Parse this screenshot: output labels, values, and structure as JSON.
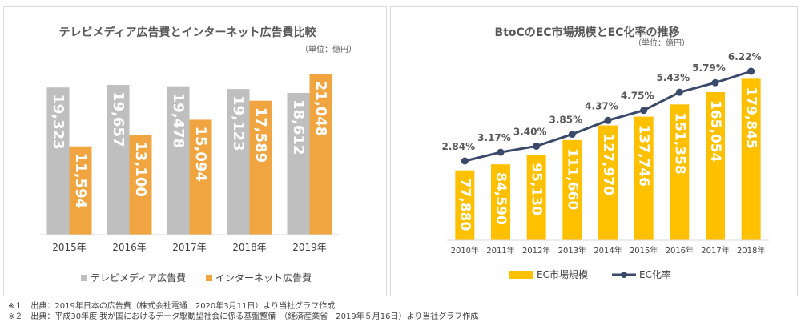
{
  "chart_data": [
    {
      "type": "bar",
      "title": "テレビメディア広告費とインターネット広告費比較",
      "unit_note": "（単位：億円）",
      "categories": [
        "2015年",
        "2016年",
        "2017年",
        "2018年",
        "2019年"
      ],
      "series": [
        {
          "name": "テレビメディア広告費",
          "color": "#bfbfbf",
          "values": [
            19323,
            19657,
            19478,
            19123,
            18612
          ],
          "labels": [
            "19,323",
            "19,657",
            "19,478",
            "19,123",
            "18,612"
          ]
        },
        {
          "name": "インターネット広告費",
          "color": "#f0a540",
          "values": [
            11594,
            13100,
            15094,
            17589,
            21048
          ],
          "labels": [
            "11,594",
            "13,100",
            "15,094",
            "17,589",
            "21,048"
          ]
        }
      ],
      "ylim": [
        0,
        22500
      ],
      "grid": false,
      "legend": "bottom"
    },
    {
      "type": "bar",
      "title": "BtoCのEC市場規模とEC化率の推移",
      "unit_note": "（単位：億円）",
      "categories": [
        "2010年",
        "2011年",
        "2012年",
        "2013年",
        "2014年",
        "2015年",
        "2016年",
        "2017年",
        "2018年"
      ],
      "series": [
        {
          "name": "EC市場規模",
          "type": "bar",
          "color": "#ffc000",
          "values": [
            77880,
            84590,
            95130,
            111660,
            127970,
            137746,
            151358,
            165054,
            179845
          ],
          "labels": [
            "77,880",
            "84,590",
            "95,130",
            "111,660",
            "127,970",
            "137,746",
            "151,358",
            "165,054",
            "179,845"
          ]
        },
        {
          "name": "EC化率",
          "type": "line",
          "color": "#3b4a6b",
          "values": [
            2.84,
            3.17,
            3.4,
            3.85,
            4.37,
            4.75,
            5.43,
            5.79,
            6.22
          ],
          "labels": [
            "2.84%",
            "3.17%",
            "3.40%",
            "3.85%",
            "4.37%",
            "4.75%",
            "5.43%",
            "5.79%",
            "6.22%"
          ]
        }
      ],
      "ylim": [
        0,
        190000
      ],
      "y2lim": [
        0,
        6.22
      ],
      "grid": false,
      "legend": "bottom"
    }
  ],
  "footnotes": [
    "※１　出典：2019年日本の広告費（株式会社電通　2020年3月11日）より当社グラフ作成",
    "※２　出典：平成30年度 我が国におけるデータ駆動型社会に係る基盤整備　（経済産業省　2019年５月16日）より当社グラフ作成"
  ]
}
